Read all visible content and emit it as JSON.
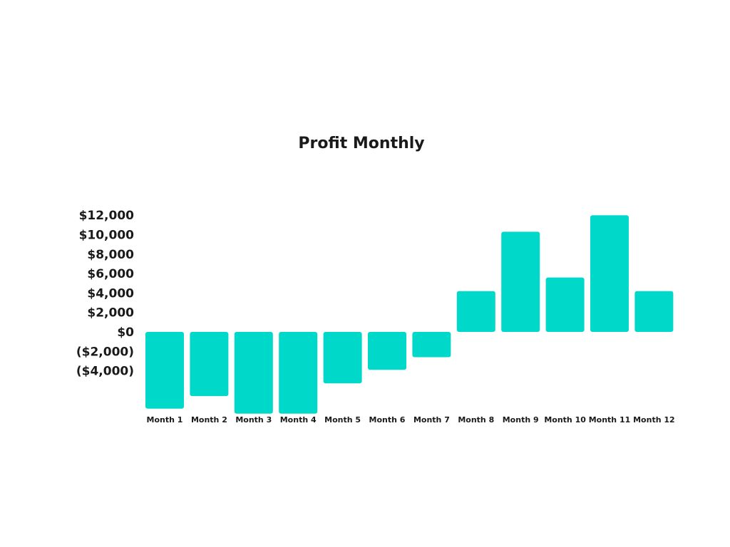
{
  "chart_data": {
    "type": "bar",
    "title": "Profit Monthly",
    "xlabel": "",
    "ylabel": "",
    "categories": [
      "Month 1",
      "Month 2",
      "Month 3",
      "Month 4",
      "Month 5",
      "Month 6",
      "Month 7",
      "Month 8",
      "Month 9",
      "Month 10",
      "Month 11",
      "Month 12"
    ],
    "values": [
      -7900,
      -6600,
      -8400,
      -8400,
      -5300,
      -3900,
      -2600,
      4200,
      10300,
      5600,
      12000,
      4200
    ],
    "ylim": [
      -8400,
      12000
    ],
    "yticks": [
      12000,
      10000,
      8000,
      6000,
      4000,
      2000,
      0,
      -2000,
      -4000
    ],
    "ytick_labels": [
      "$12,000",
      "$10,000",
      "$8,000",
      "$6,000",
      "$4,000",
      "$2,000",
      "$0",
      "($2,000)",
      "($4,000)"
    ],
    "grid": false,
    "bar_color": "#00d9c9"
  }
}
